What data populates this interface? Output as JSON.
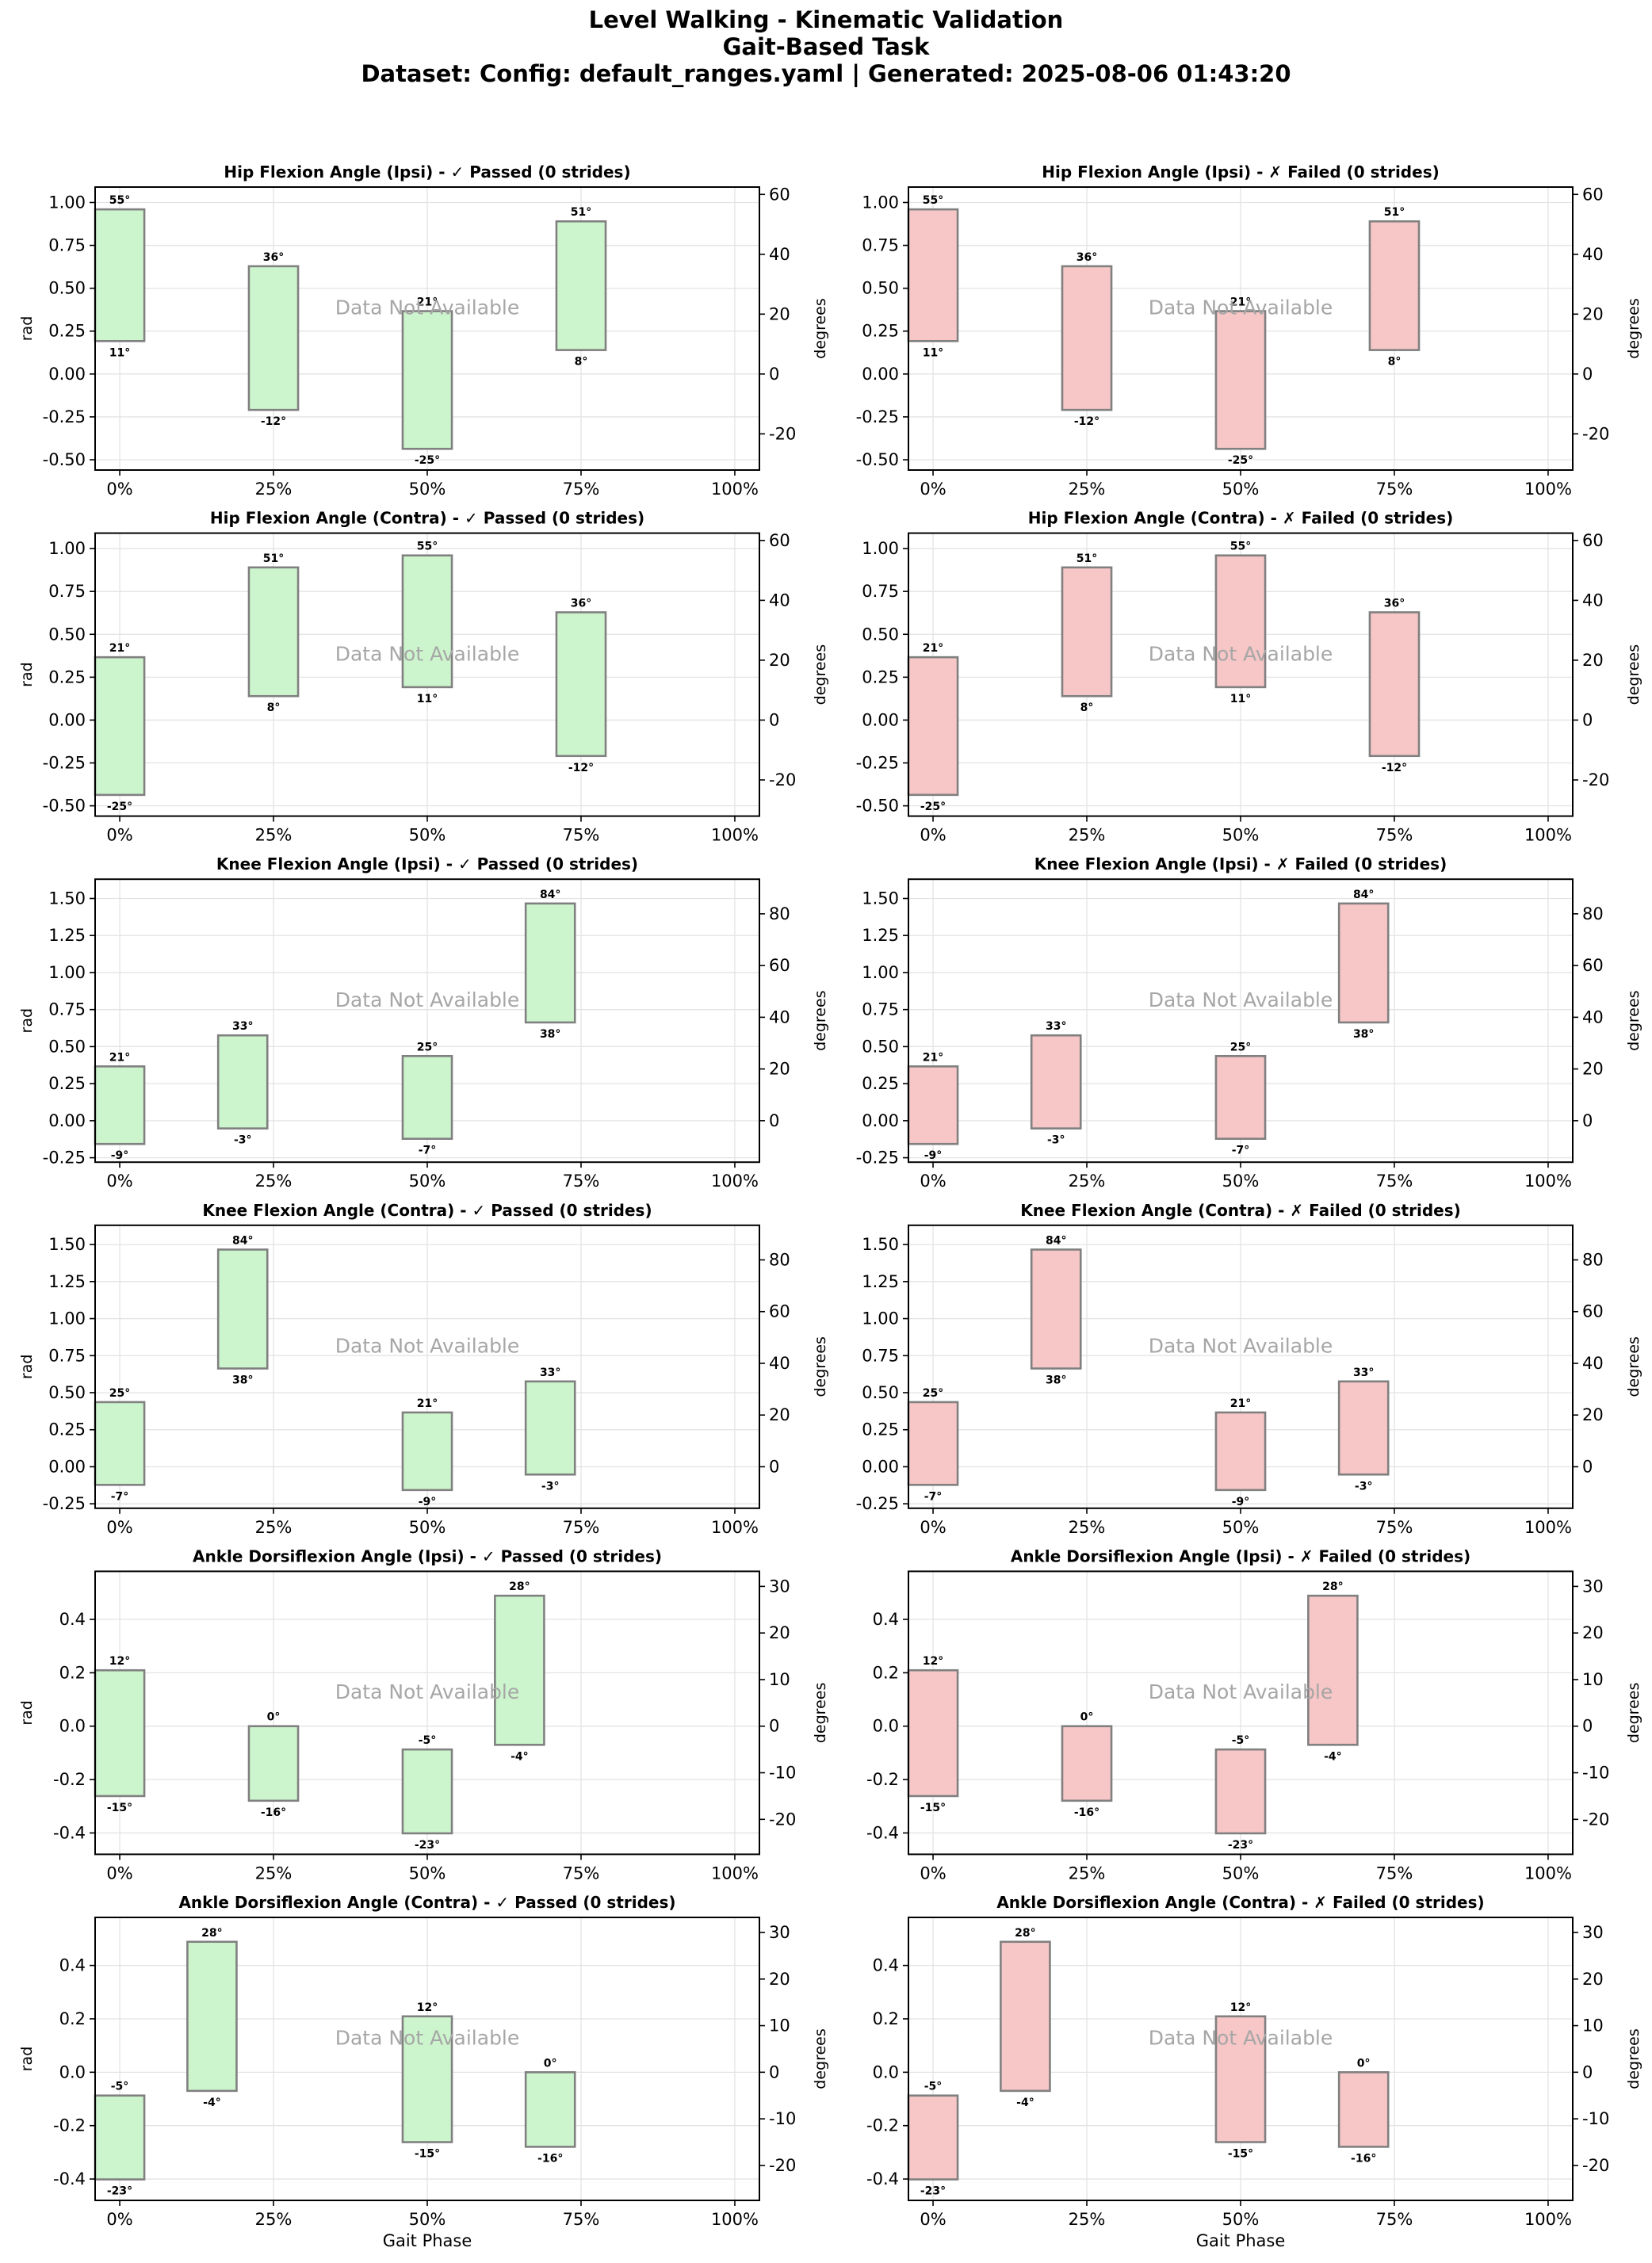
{
  "figure": {
    "title": "Level Walking - Kinematic Validation",
    "subtitle": "Gait-Based Task",
    "source_line": "Dataset: Config: default_ranges.yaml | Generated: 2025-08-06 01:43:20"
  },
  "chart_data": [
    {
      "type": "bar",
      "column": "passed",
      "title": "Hip Flexion Angle (Ipsi) - ✓ Passed (0 strides)",
      "xlabel": "",
      "ylabel": "rad",
      "y2label": "degrees",
      "xticks": [
        "0%",
        "25%",
        "50%",
        "75%",
        "100%"
      ],
      "xlim": [
        -0.04,
        1.04
      ],
      "ylim": [
        -0.56,
        1.09
      ],
      "yticks": [
        -0.5,
        -0.25,
        0,
        0.25,
        0.5,
        0.75,
        1.0
      ],
      "y2ticks": [
        -20,
        0,
        20,
        40,
        60
      ],
      "annotation": "Data Not Available",
      "ranges": [
        {
          "phase": 0,
          "min_deg": 11,
          "max_deg": 55,
          "min_label": "11°",
          "max_label": "55°"
        },
        {
          "phase": 25,
          "min_deg": -12,
          "max_deg": 36,
          "min_label": "-12°",
          "max_label": "36°"
        },
        {
          "phase": 50,
          "min_deg": -25,
          "max_deg": 21,
          "min_label": "-25°",
          "max_label": "21°"
        },
        {
          "phase": 75,
          "min_deg": 8,
          "max_deg": 51,
          "min_label": "8°",
          "max_label": "51°"
        }
      ]
    },
    {
      "type": "bar",
      "column": "failed",
      "title": "Hip Flexion Angle (Ipsi) - ✗ Failed (0 strides)",
      "xlabel": "",
      "ylabel": "",
      "y2label": "degrees",
      "xticks": [
        "0%",
        "25%",
        "50%",
        "75%",
        "100%"
      ],
      "xlim": [
        -0.04,
        1.04
      ],
      "ylim": [
        -0.56,
        1.09
      ],
      "yticks": [
        -0.5,
        -0.25,
        0,
        0.25,
        0.5,
        0.75,
        1.0
      ],
      "y2ticks": [
        -20,
        0,
        20,
        40,
        60
      ],
      "annotation": "Data Not Available",
      "ranges": [
        {
          "phase": 0,
          "min_deg": 11,
          "max_deg": 55,
          "min_label": "11°",
          "max_label": "55°"
        },
        {
          "phase": 25,
          "min_deg": -12,
          "max_deg": 36,
          "min_label": "-12°",
          "max_label": "36°"
        },
        {
          "phase": 50,
          "min_deg": -25,
          "max_deg": 21,
          "min_label": "-25°",
          "max_label": "21°"
        },
        {
          "phase": 75,
          "min_deg": 8,
          "max_deg": 51,
          "min_label": "8°",
          "max_label": "51°"
        }
      ]
    },
    {
      "type": "bar",
      "column": "passed",
      "title": "Hip Flexion Angle (Contra) - ✓ Passed (0 strides)",
      "xlabel": "",
      "ylabel": "rad",
      "y2label": "degrees",
      "xticks": [
        "0%",
        "25%",
        "50%",
        "75%",
        "100%"
      ],
      "xlim": [
        -0.04,
        1.04
      ],
      "ylim": [
        -0.56,
        1.09
      ],
      "yticks": [
        -0.5,
        -0.25,
        0,
        0.25,
        0.5,
        0.75,
        1.0
      ],
      "y2ticks": [
        -20,
        0,
        20,
        40,
        60
      ],
      "annotation": "Data Not Available",
      "ranges": [
        {
          "phase": 0,
          "min_deg": -25,
          "max_deg": 21,
          "min_label": "-25°",
          "max_label": "21°"
        },
        {
          "phase": 25,
          "min_deg": 8,
          "max_deg": 51,
          "min_label": "8°",
          "max_label": "51°"
        },
        {
          "phase": 50,
          "min_deg": 11,
          "max_deg": 55,
          "min_label": "11°",
          "max_label": "55°"
        },
        {
          "phase": 75,
          "min_deg": -12,
          "max_deg": 36,
          "min_label": "-12°",
          "max_label": "36°"
        }
      ]
    },
    {
      "type": "bar",
      "column": "failed",
      "title": "Hip Flexion Angle (Contra) - ✗ Failed (0 strides)",
      "xlabel": "",
      "ylabel": "",
      "y2label": "degrees",
      "xticks": [
        "0%",
        "25%",
        "50%",
        "75%",
        "100%"
      ],
      "xlim": [
        -0.04,
        1.04
      ],
      "ylim": [
        -0.56,
        1.09
      ],
      "yticks": [
        -0.5,
        -0.25,
        0,
        0.25,
        0.5,
        0.75,
        1.0
      ],
      "y2ticks": [
        -20,
        0,
        20,
        40,
        60
      ],
      "annotation": "Data Not Available",
      "ranges": [
        {
          "phase": 0,
          "min_deg": -25,
          "max_deg": 21,
          "min_label": "-25°",
          "max_label": "21°"
        },
        {
          "phase": 25,
          "min_deg": 8,
          "max_deg": 51,
          "min_label": "8°",
          "max_label": "51°"
        },
        {
          "phase": 50,
          "min_deg": 11,
          "max_deg": 55,
          "min_label": "11°",
          "max_label": "55°"
        },
        {
          "phase": 75,
          "min_deg": -12,
          "max_deg": 36,
          "min_label": "-12°",
          "max_label": "36°"
        }
      ]
    },
    {
      "type": "bar",
      "column": "passed",
      "title": "Knee Flexion Angle (Ipsi) - ✓ Passed (0 strides)",
      "xlabel": "",
      "ylabel": "rad",
      "y2label": "degrees",
      "xticks": [
        "0%",
        "25%",
        "50%",
        "75%",
        "100%"
      ],
      "xlim": [
        -0.04,
        1.04
      ],
      "ylim": [
        -0.28,
        1.63
      ],
      "yticks": [
        -0.25,
        0,
        0.25,
        0.5,
        0.75,
        1.0,
        1.25,
        1.5
      ],
      "y2ticks": [
        0,
        20,
        40,
        60,
        80
      ],
      "annotation": "Data Not Available",
      "ranges": [
        {
          "phase": 0,
          "min_deg": -9,
          "max_deg": 21,
          "min_label": "-9°",
          "max_label": "21°"
        },
        {
          "phase": 20,
          "min_deg": -3,
          "max_deg": 33,
          "min_label": "-3°",
          "max_label": "33°"
        },
        {
          "phase": 50,
          "min_deg": -7,
          "max_deg": 25,
          "min_label": "-7°",
          "max_label": "25°"
        },
        {
          "phase": 70,
          "min_deg": 38,
          "max_deg": 84,
          "min_label": "38°",
          "max_label": "84°"
        }
      ]
    },
    {
      "type": "bar",
      "column": "failed",
      "title": "Knee Flexion Angle (Ipsi) - ✗ Failed (0 strides)",
      "xlabel": "",
      "ylabel": "",
      "y2label": "degrees",
      "xticks": [
        "0%",
        "25%",
        "50%",
        "75%",
        "100%"
      ],
      "xlim": [
        -0.04,
        1.04
      ],
      "ylim": [
        -0.28,
        1.63
      ],
      "yticks": [
        -0.25,
        0,
        0.25,
        0.5,
        0.75,
        1.0,
        1.25,
        1.5
      ],
      "y2ticks": [
        0,
        20,
        40,
        60,
        80
      ],
      "annotation": "Data Not Available",
      "ranges": [
        {
          "phase": 0,
          "min_deg": -9,
          "max_deg": 21,
          "min_label": "-9°",
          "max_label": "21°"
        },
        {
          "phase": 20,
          "min_deg": -3,
          "max_deg": 33,
          "min_label": "-3°",
          "max_label": "33°"
        },
        {
          "phase": 50,
          "min_deg": -7,
          "max_deg": 25,
          "min_label": "-7°",
          "max_label": "25°"
        },
        {
          "phase": 70,
          "min_deg": 38,
          "max_deg": 84,
          "min_label": "38°",
          "max_label": "84°"
        }
      ]
    },
    {
      "type": "bar",
      "column": "passed",
      "title": "Knee Flexion Angle (Contra) - ✓ Passed (0 strides)",
      "xlabel": "",
      "ylabel": "rad",
      "y2label": "degrees",
      "xticks": [
        "0%",
        "25%",
        "50%",
        "75%",
        "100%"
      ],
      "xlim": [
        -0.04,
        1.04
      ],
      "ylim": [
        -0.28,
        1.63
      ],
      "yticks": [
        -0.25,
        0,
        0.25,
        0.5,
        0.75,
        1.0,
        1.25,
        1.5
      ],
      "y2ticks": [
        0,
        20,
        40,
        60,
        80
      ],
      "annotation": "Data Not Available",
      "ranges": [
        {
          "phase": 0,
          "min_deg": -7,
          "max_deg": 25,
          "min_label": "-7°",
          "max_label": "25°"
        },
        {
          "phase": 20,
          "min_deg": 38,
          "max_deg": 84,
          "min_label": "38°",
          "max_label": "84°"
        },
        {
          "phase": 50,
          "min_deg": -9,
          "max_deg": 21,
          "min_label": "-9°",
          "max_label": "21°"
        },
        {
          "phase": 70,
          "min_deg": -3,
          "max_deg": 33,
          "min_label": "-3°",
          "max_label": "33°"
        }
      ]
    },
    {
      "type": "bar",
      "column": "failed",
      "title": "Knee Flexion Angle (Contra) - ✗ Failed (0 strides)",
      "xlabel": "",
      "ylabel": "",
      "y2label": "degrees",
      "xticks": [
        "0%",
        "25%",
        "50%",
        "75%",
        "100%"
      ],
      "xlim": [
        -0.04,
        1.04
      ],
      "ylim": [
        -0.28,
        1.63
      ],
      "yticks": [
        -0.25,
        0,
        0.25,
        0.5,
        0.75,
        1.0,
        1.25,
        1.5
      ],
      "y2ticks": [
        0,
        20,
        40,
        60,
        80
      ],
      "annotation": "Data Not Available",
      "ranges": [
        {
          "phase": 0,
          "min_deg": -7,
          "max_deg": 25,
          "min_label": "-7°",
          "max_label": "25°"
        },
        {
          "phase": 20,
          "min_deg": 38,
          "max_deg": 84,
          "min_label": "38°",
          "max_label": "84°"
        },
        {
          "phase": 50,
          "min_deg": -9,
          "max_deg": 21,
          "min_label": "-9°",
          "max_label": "21°"
        },
        {
          "phase": 70,
          "min_deg": -3,
          "max_deg": 33,
          "min_label": "-3°",
          "max_label": "33°"
        }
      ]
    },
    {
      "type": "bar",
      "column": "passed",
      "title": "Ankle Dorsiflexion Angle (Ipsi) - ✓ Passed (0 strides)",
      "xlabel": "",
      "ylabel": "rad",
      "y2label": "degrees",
      "xticks": [
        "0%",
        "25%",
        "50%",
        "75%",
        "100%"
      ],
      "xlim": [
        -0.04,
        1.04
      ],
      "ylim": [
        -0.48,
        0.58
      ],
      "yticks": [
        -0.4,
        -0.2,
        0,
        0.2,
        0.4
      ],
      "y2ticks": [
        -20,
        -10,
        0,
        10,
        20,
        30
      ],
      "annotation": "Data Not Available",
      "ranges": [
        {
          "phase": 0,
          "min_deg": -15,
          "max_deg": 12,
          "min_label": "-15°",
          "max_label": "12°"
        },
        {
          "phase": 25,
          "min_deg": -16,
          "max_deg": 0,
          "min_label": "-16°",
          "max_label": "0°"
        },
        {
          "phase": 50,
          "min_deg": -23,
          "max_deg": -5,
          "min_label": "-23°",
          "max_label": "-5°"
        },
        {
          "phase": 65,
          "min_deg": -4,
          "max_deg": 28,
          "min_label": "-4°",
          "max_label": "28°"
        }
      ]
    },
    {
      "type": "bar",
      "column": "failed",
      "title": "Ankle Dorsiflexion Angle (Ipsi) - ✗ Failed (0 strides)",
      "xlabel": "",
      "ylabel": "",
      "y2label": "degrees",
      "xticks": [
        "0%",
        "25%",
        "50%",
        "75%",
        "100%"
      ],
      "xlim": [
        -0.04,
        1.04
      ],
      "ylim": [
        -0.48,
        0.58
      ],
      "yticks": [
        -0.4,
        -0.2,
        0,
        0.2,
        0.4
      ],
      "y2ticks": [
        -20,
        -10,
        0,
        10,
        20,
        30
      ],
      "annotation": "Data Not Available",
      "ranges": [
        {
          "phase": 0,
          "min_deg": -15,
          "max_deg": 12,
          "min_label": "-15°",
          "max_label": "12°"
        },
        {
          "phase": 25,
          "min_deg": -16,
          "max_deg": 0,
          "min_label": "-16°",
          "max_label": "0°"
        },
        {
          "phase": 50,
          "min_deg": -23,
          "max_deg": -5,
          "min_label": "-23°",
          "max_label": "-5°"
        },
        {
          "phase": 65,
          "min_deg": -4,
          "max_deg": 28,
          "min_label": "-4°",
          "max_label": "28°"
        }
      ]
    },
    {
      "type": "bar",
      "column": "passed",
      "title": "Ankle Dorsiflexion Angle (Contra) - ✓ Passed (0 strides)",
      "xlabel": "Gait Phase",
      "ylabel": "rad",
      "y2label": "degrees",
      "xticks": [
        "0%",
        "25%",
        "50%",
        "75%",
        "100%"
      ],
      "xlim": [
        -0.04,
        1.04
      ],
      "ylim": [
        -0.48,
        0.58
      ],
      "yticks": [
        -0.4,
        -0.2,
        0,
        0.2,
        0.4
      ],
      "y2ticks": [
        -20,
        -10,
        0,
        10,
        20,
        30
      ],
      "annotation": "Data Not Available",
      "ranges": [
        {
          "phase": 0,
          "min_deg": -23,
          "max_deg": -5,
          "min_label": "-23°",
          "max_label": "-5°"
        },
        {
          "phase": 15,
          "min_deg": -4,
          "max_deg": 28,
          "min_label": "-4°",
          "max_label": "28°"
        },
        {
          "phase": 50,
          "min_deg": -15,
          "max_deg": 12,
          "min_label": "-15°",
          "max_label": "12°"
        },
        {
          "phase": 70,
          "min_deg": -16,
          "max_deg": 0,
          "min_label": "-16°",
          "max_label": "0°"
        }
      ]
    },
    {
      "type": "bar",
      "column": "failed",
      "title": "Ankle Dorsiflexion Angle (Contra) - ✗ Failed (0 strides)",
      "xlabel": "Gait Phase",
      "ylabel": "",
      "y2label": "degrees",
      "xticks": [
        "0%",
        "25%",
        "50%",
        "75%",
        "100%"
      ],
      "xlim": [
        -0.04,
        1.04
      ],
      "ylim": [
        -0.48,
        0.58
      ],
      "yticks": [
        -0.4,
        -0.2,
        0,
        0.2,
        0.4
      ],
      "y2ticks": [
        -20,
        -10,
        0,
        10,
        20,
        30
      ],
      "annotation": "Data Not Available",
      "ranges": [
        {
          "phase": 0,
          "min_deg": -23,
          "max_deg": -5,
          "min_label": "-23°",
          "max_label": "-5°"
        },
        {
          "phase": 15,
          "min_deg": -4,
          "max_deg": 28,
          "min_label": "-4°",
          "max_label": "28°"
        },
        {
          "phase": 50,
          "min_deg": -15,
          "max_deg": 12,
          "min_label": "-15°",
          "max_label": "12°"
        },
        {
          "phase": 70,
          "min_deg": -16,
          "max_deg": 0,
          "min_label": "-16°",
          "max_label": "0°"
        }
      ]
    }
  ],
  "colors": {
    "passed_fill": "#cdf5cd",
    "failed_fill": "#f7c6c6",
    "bar_edge": "#808080",
    "grid": "#e3e3e3",
    "annotation_text": "#a6a6a6"
  }
}
